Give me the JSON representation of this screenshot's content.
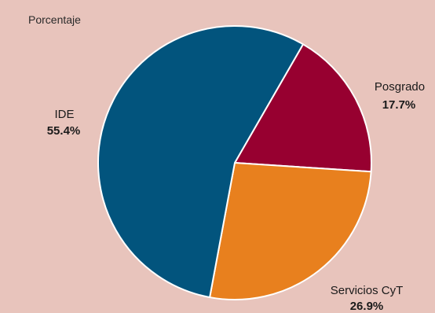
{
  "chart_data": {
    "type": "pie",
    "ylabel": "Porcentaje",
    "slices": [
      {
        "label": "Posgrado",
        "value": 17.7,
        "value_label": "17.7%",
        "color": "#970030"
      },
      {
        "label": "Servicios CyT",
        "value": 26.9,
        "value_label": "26.9%",
        "color": "#e8801e"
      },
      {
        "label": "IDE",
        "value": 55.4,
        "value_label": "55.4%",
        "color": "#02547d"
      }
    ],
    "start_angle_deg": 30,
    "direction": "clockwise"
  }
}
